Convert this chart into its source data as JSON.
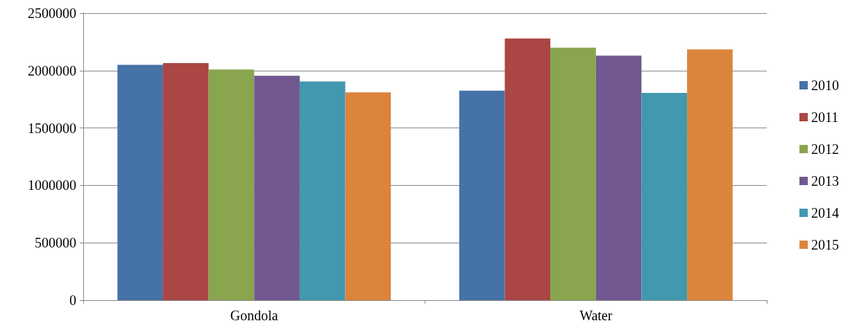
{
  "chart_data": {
    "type": "bar",
    "categories": [
      "Gondola",
      "Water"
    ],
    "series": [
      {
        "name": "2010",
        "color": "#4572a7",
        "values": [
          2050000,
          1825000
        ]
      },
      {
        "name": "2011",
        "color": "#aa4643",
        "values": [
          2065000,
          2280000
        ]
      },
      {
        "name": "2012",
        "color": "#89a54e",
        "values": [
          2010000,
          2200000
        ]
      },
      {
        "name": "2013",
        "color": "#71588f",
        "values": [
          1955000,
          2130000
        ]
      },
      {
        "name": "2014",
        "color": "#4198af",
        "values": [
          1905000,
          1805000
        ]
      },
      {
        "name": "2015",
        "color": "#db843d",
        "values": [
          1810000,
          2185000
        ]
      }
    ],
    "ylim": [
      0,
      2500000
    ],
    "yticks": [
      0,
      500000,
      1000000,
      1500000,
      2000000,
      2500000
    ],
    "grid": "y",
    "legend": "right"
  }
}
